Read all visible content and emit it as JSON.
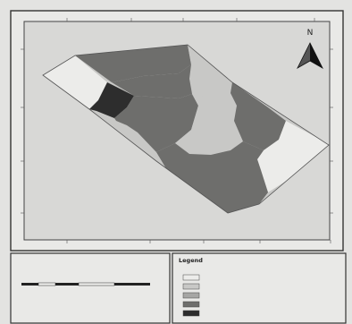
{
  "north_arrow": {
    "label": "N"
  },
  "frame_ticks": {
    "top": [
      "",
      "",
      "",
      "",
      ""
    ],
    "bottom": [
      "",
      "",
      "",
      "",
      ""
    ],
    "left": [
      "",
      "",
      "",
      ""
    ],
    "right": [
      "",
      "",
      "",
      ""
    ]
  },
  "zone_colors": [
    "#ececea",
    "#c8c8c6",
    "#a6a6a4",
    "#6e6e6c",
    "#2d2d2d"
  ],
  "legend": {
    "title": "Legend",
    "subtitle": "",
    "classes": [
      {
        "label": "",
        "color": "#ececea"
      },
      {
        "label": "",
        "color": "#c8c8c6"
      },
      {
        "label": "",
        "color": "#a6a6a4"
      },
      {
        "label": "",
        "color": "#6e6e6c"
      },
      {
        "label": "",
        "color": "#2d2d2d"
      }
    ]
  },
  "scale_bar": {
    "labels": [
      "",
      "",
      "",
      "",
      ""
    ],
    "unit": ""
  }
}
